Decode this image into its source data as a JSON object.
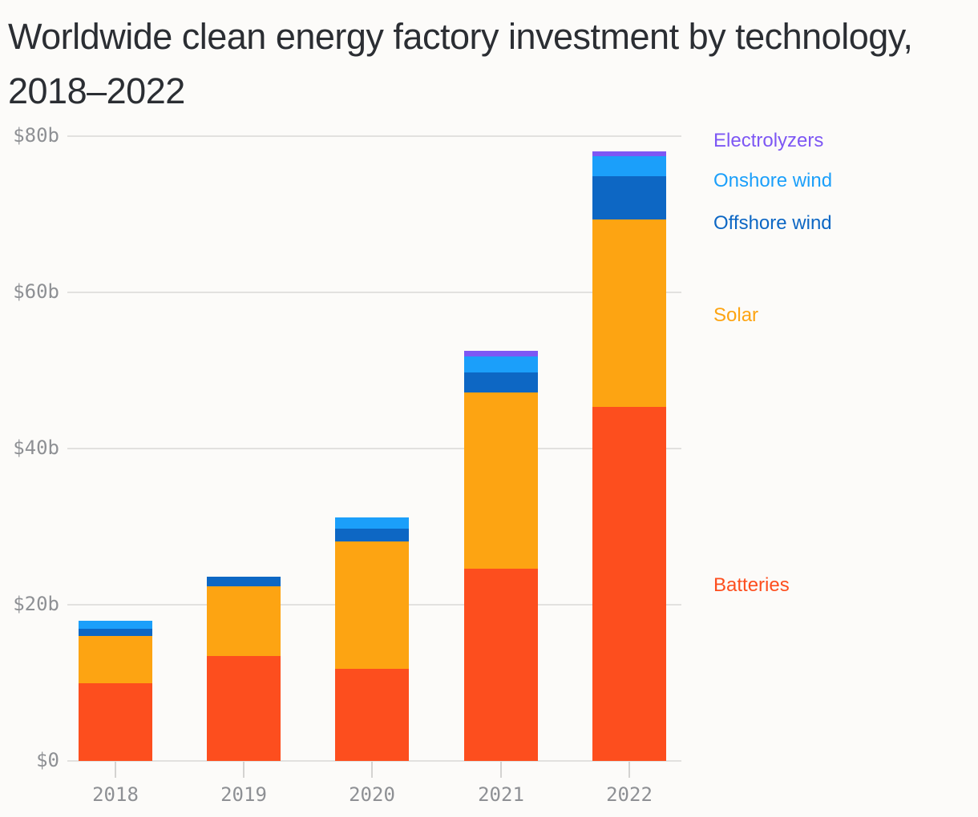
{
  "title": "Worldwide clean energy factory investment by technology, 2018–2022",
  "chart_data": {
    "type": "bar",
    "stacked": true,
    "title": "Worldwide clean energy factory investment by technology, 2018–2022",
    "categories": [
      "2018",
      "2019",
      "2020",
      "2021",
      "2022"
    ],
    "series": [
      {
        "name": "Batteries",
        "color": "#fd4e1e",
        "values": [
          9.9,
          13.4,
          11.8,
          24.6,
          45.3
        ]
      },
      {
        "name": "Solar",
        "color": "#fda412",
        "values": [
          6.1,
          9.0,
          16.3,
          22.6,
          24.0
        ]
      },
      {
        "name": "Offshore wind",
        "color": "#0d67c4",
        "values": [
          0.9,
          1.2,
          1.6,
          2.5,
          5.6
        ]
      },
      {
        "name": "Onshore wind",
        "color": "#1b9ffa",
        "values": [
          1.0,
          0,
          1.5,
          2.1,
          2.5
        ]
      },
      {
        "name": "Electrolyzers",
        "color": "#7d57f4",
        "values": [
          0,
          0,
          0,
          0.7,
          0.7
        ]
      }
    ],
    "totals": [
      17.9,
      23.6,
      31.2,
      52.5,
      78.1
    ],
    "ylim": [
      0,
      80
    ],
    "yticks": [
      {
        "value": 0,
        "label": "$0"
      },
      {
        "value": 20,
        "label": "$20b"
      },
      {
        "value": 40,
        "label": "$40b"
      },
      {
        "value": 60,
        "label": "$60b"
      },
      {
        "value": 80,
        "label": "$80b"
      }
    ],
    "grid": true,
    "legend_position": "right",
    "units": "billion USD"
  },
  "legend": {
    "items": [
      {
        "label": "Electrolyzers",
        "series": "Electrolyzers",
        "color": "#7d57f4"
      },
      {
        "label": "Onshore wind",
        "series": "Onshore wind",
        "color": "#1b9ffa"
      },
      {
        "label": "Offshore wind",
        "series": "Offshore wind",
        "color": "#0d67c4"
      },
      {
        "label": "Solar",
        "series": "Solar",
        "color": "#fda412"
      },
      {
        "label": "Batteries",
        "series": "Batteries",
        "color": "#fd4e1e"
      }
    ]
  }
}
